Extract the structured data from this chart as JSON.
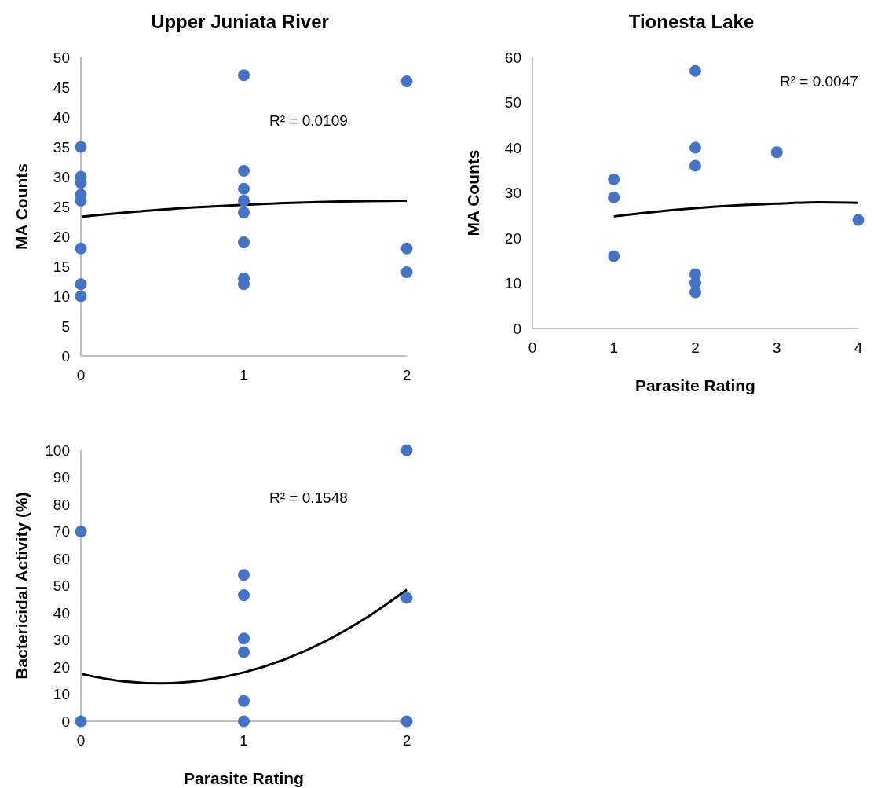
{
  "chart_data": [
    {
      "type": "scatter",
      "title": "Upper Juniata River",
      "ylabel": "MA Counts",
      "annotations": [
        "R² = 0.0109"
      ],
      "grid": false,
      "xlim": [
        0,
        2
      ],
      "xticks": [
        0,
        1,
        2
      ],
      "ylim": [
        0,
        50
      ],
      "yticks": [
        0,
        5,
        10,
        15,
        20,
        25,
        30,
        35,
        40,
        45,
        50
      ],
      "series": [
        {
          "color": "#4472c4",
          "marker": "circle",
          "x": [
            0,
            0,
            0,
            0,
            0,
            0,
            0,
            0,
            1,
            1,
            1,
            1,
            1,
            1,
            1,
            1,
            2,
            2,
            2
          ],
          "values": [
            35,
            30,
            29,
            27,
            26,
            18,
            12,
            10,
            47,
            31,
            28,
            26,
            24,
            19,
            13,
            12,
            46,
            18,
            14
          ]
        },
        {
          "type": "line",
          "color": "#000000",
          "x": [
            0,
            0.5,
            1,
            1.5,
            2
          ],
          "values": [
            23.3,
            24.5,
            25.3,
            25.8,
            26
          ]
        }
      ]
    },
    {
      "type": "scatter",
      "title": "Tionesta Lake",
      "xlabel": "Parasite Rating",
      "ylabel": "MA Counts",
      "annotations": [
        "R² = 0.0047"
      ],
      "grid": false,
      "xlim": [
        0,
        4
      ],
      "xticks": [
        0,
        1,
        2,
        3,
        4
      ],
      "ylim": [
        0,
        60
      ],
      "yticks": [
        0,
        10,
        20,
        30,
        40,
        50,
        60
      ],
      "series": [
        {
          "color": "#4472c4",
          "marker": "circle",
          "x": [
            1,
            1,
            1,
            2,
            2,
            2,
            2,
            2,
            2,
            3,
            4
          ],
          "values": [
            33,
            29,
            16,
            57,
            40,
            36,
            12,
            10,
            8,
            39,
            24
          ]
        },
        {
          "type": "line",
          "color": "#000000",
          "x": [
            1,
            1.5,
            2,
            2.5,
            3,
            3.5,
            4
          ],
          "values": [
            24.8,
            25.8,
            26.6,
            27.2,
            27.6,
            27.9,
            27.8
          ]
        }
      ]
    },
    {
      "type": "scatter",
      "xlabel": "Parasite Rating",
      "ylabel": "Bactericidal Activity (%)",
      "annotations": [
        "R² = 0.1548"
      ],
      "grid": false,
      "xlim": [
        0,
        2
      ],
      "xticks": [
        0,
        1,
        2
      ],
      "ylim": [
        0,
        100
      ],
      "yticks": [
        0,
        10,
        20,
        30,
        40,
        50,
        60,
        70,
        80,
        90,
        100
      ],
      "series": [
        {
          "color": "#4472c4",
          "marker": "circle",
          "x": [
            0,
            0,
            1,
            1,
            1,
            1,
            1,
            1,
            2,
            2,
            2
          ],
          "values": [
            70,
            0,
            54,
            46.5,
            30.5,
            25.5,
            7.5,
            0,
            100,
            45.5,
            0
          ]
        },
        {
          "type": "line",
          "color": "#000000",
          "x": [
            0,
            0.25,
            0.5,
            0.75,
            1,
            1.25,
            1.5,
            1.75,
            2
          ],
          "values": [
            17.5,
            14.8,
            14,
            15.1,
            18,
            22.8,
            29.5,
            38.1,
            48.5
          ]
        }
      ]
    }
  ]
}
